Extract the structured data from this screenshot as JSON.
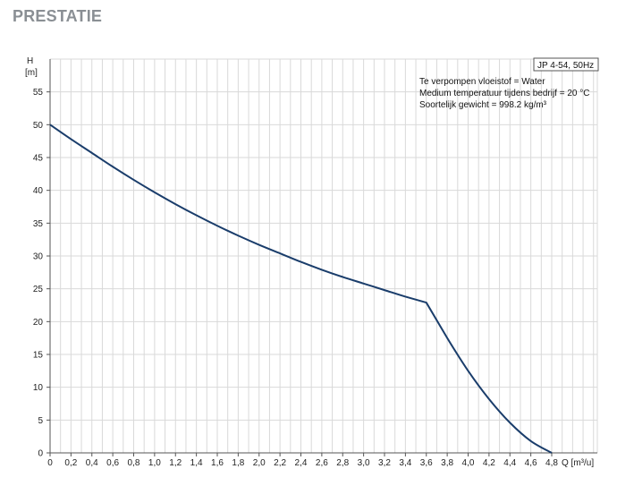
{
  "page": {
    "heading": "PRESTATIE"
  },
  "chart_data": {
    "type": "line",
    "y_axis_title": "H",
    "y_axis_unit": "[m]",
    "x_axis_unit": "Q [m³/u]",
    "xlim": [
      0,
      4.8
    ],
    "ylim": [
      0,
      60
    ],
    "x_ticks": [
      "0",
      "0,2",
      "0,4",
      "0,6",
      "0,8",
      "1,0",
      "1,2",
      "1,4",
      "1,6",
      "1,8",
      "2,0",
      "2,2",
      "2,4",
      "2,6",
      "2,8",
      "3,0",
      "3,2",
      "3,4",
      "3,6",
      "3,8",
      "4,0",
      "4,2",
      "4,4",
      "4,6",
      "4,8"
    ],
    "y_ticks": [
      "0",
      "5",
      "10",
      "15",
      "20",
      "25",
      "30",
      "35",
      "40",
      "45",
      "50",
      "55"
    ],
    "grid": true,
    "pump_label": "JP 4-54, 50Hz",
    "info_lines": [
      "Te verpompen vloeistof = Water",
      "Medium temperatuur tijdens bedrijf = 20 °C",
      "Soortelijk gewicht = 998.2 kg/m³"
    ],
    "line_color": "#1a3d6b",
    "series": [
      {
        "x": [
          0,
          0.2,
          0.4,
          0.6,
          0.8,
          1.0,
          1.2,
          1.4,
          1.6,
          1.8,
          2.0,
          2.2,
          2.4,
          2.6,
          2.8,
          3.0,
          3.2,
          3.4,
          3.6,
          3.8,
          4.0,
          4.2,
          4.4,
          4.6,
          4.8
        ],
        "y": [
          50,
          47.8,
          45.7,
          43.6,
          41.6,
          39.7,
          37.9,
          36.2,
          34.6,
          33.1,
          31.7,
          30.4,
          29.1,
          27.9,
          26.8,
          25.8,
          24.8,
          23.8,
          22.9,
          17.5,
          12.5,
          8.2,
          4.6,
          1.8,
          0
        ]
      }
    ]
  }
}
